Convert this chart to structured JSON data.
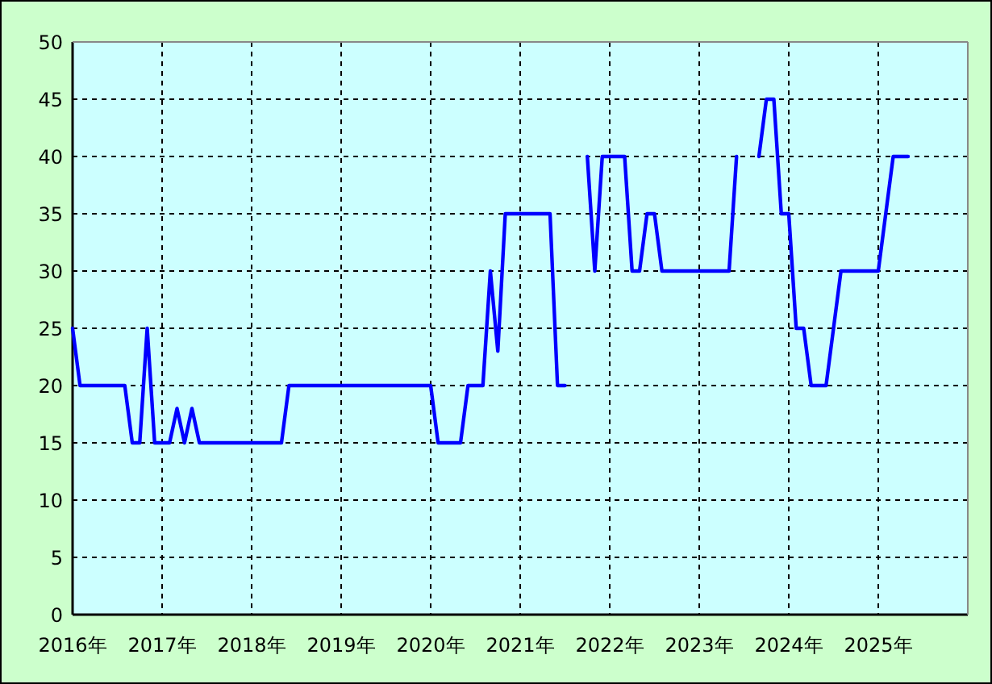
{
  "chart_data": {
    "type": "line",
    "series": [
      {
        "color": "#0000ff",
        "x": [
          "2016-01",
          "2016-02",
          "2016-08",
          "2016-09",
          "2016-10",
          "2016-11",
          "2016-12",
          "2017-02",
          "2017-03",
          "2017-04",
          "2017-05",
          "2017-06",
          "2018-05",
          "2018-06",
          "2020-01",
          "2020-02",
          "2020-05",
          "2020-06",
          "2020-08",
          "2020-09",
          "2020-10",
          "2020-11",
          "2021-05",
          "2021-06",
          "2021-07"
        ],
        "values": [
          25,
          20,
          20,
          15,
          15,
          25,
          15,
          15,
          18,
          15,
          18,
          15,
          15,
          20,
          20,
          15,
          15,
          20,
          20,
          30,
          23,
          35,
          35,
          20,
          20
        ]
      },
      {
        "color": "#0000ff",
        "x": [
          "2021-10",
          "2021-11",
          "2021-12",
          "2022-03",
          "2022-04",
          "2022-05",
          "2022-06",
          "2022-07",
          "2022-08",
          "2023-05",
          "2023-06"
        ],
        "values": [
          40,
          30,
          40,
          40,
          30,
          30,
          35,
          35,
          30,
          30,
          40
        ]
      },
      {
        "color": "#0000ff",
        "x": [
          "2023-09",
          "2023-10",
          "2023-11",
          "2023-12",
          "2024-01",
          "2024-02",
          "2024-03",
          "2024-04",
          "2024-06",
          "2024-08",
          "2025-01",
          "2025-03",
          "2025-05"
        ],
        "values": [
          40,
          45,
          45,
          35,
          35,
          25,
          25,
          20,
          20,
          30,
          30,
          40,
          40
        ]
      }
    ],
    "xlim": [
      "2016",
      "2026"
    ],
    "xticks": [
      {
        "value": "2016",
        "label": "2016年"
      },
      {
        "value": "2017",
        "label": "2017年"
      },
      {
        "value": "2018",
        "label": "2018年"
      },
      {
        "value": "2019",
        "label": "2019年"
      },
      {
        "value": "2020",
        "label": "2020年"
      },
      {
        "value": "2021",
        "label": "2021年"
      },
      {
        "value": "2022",
        "label": "2022年"
      },
      {
        "value": "2023",
        "label": "2023年"
      },
      {
        "value": "2024",
        "label": "2024年"
      },
      {
        "value": "2025",
        "label": "2025年"
      }
    ],
    "ylim": [
      0,
      50
    ],
    "yticks": [
      0,
      5,
      10,
      15,
      20,
      25,
      30,
      35,
      40,
      45,
      50
    ],
    "grid": true,
    "marker": "none",
    "line_style": "solid"
  }
}
